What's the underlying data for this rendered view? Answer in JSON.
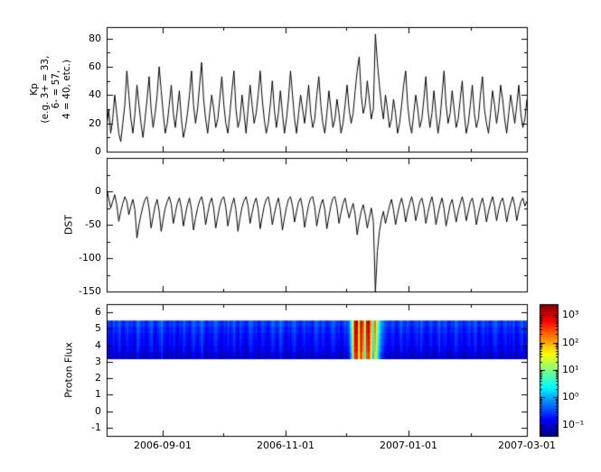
{
  "figure": {
    "background_color": "#ffffff",
    "frame_color": "#000000"
  },
  "chart_data": {
    "x_axis": {
      "start_date": "2006-08-04",
      "end_date": "2007-03-01",
      "total_days": 209,
      "tick_labels": [
        "2006-09-01",
        "2006-11-01",
        "2007-01-01",
        "2007-03-01"
      ],
      "tick_days": [
        28,
        89,
        150,
        209
      ],
      "minor_tick_days": [
        58,
        119,
        181
      ],
      "grid": "off",
      "legend": "none"
    },
    "panels": [
      {
        "type": "line",
        "name": "kp",
        "ylabel_lines": [
          "Kp",
          "(e.g. 3+ = 33,",
          "6- = 57,",
          "4 = 40, etc.)"
        ],
        "ylim": [
          0,
          88
        ],
        "yticks": [
          0,
          20,
          40,
          60,
          80
        ],
        "yticks_minor": [
          10,
          30,
          50,
          70
        ],
        "line_color": "#000000",
        "values": [
          17,
          30,
          13,
          23,
          40,
          27,
          13,
          7,
          20,
          33,
          57,
          40,
          23,
          13,
          27,
          47,
          33,
          20,
          10,
          23,
          37,
          53,
          30,
          17,
          27,
          40,
          60,
          43,
          27,
          13,
          20,
          33,
          47,
          27,
          17,
          30,
          43,
          23,
          10,
          17,
          27,
          40,
          57,
          33,
          20,
          30,
          47,
          63,
          37,
          23,
          13,
          27,
          40,
          30,
          17,
          23,
          37,
          53,
          33,
          20,
          13,
          27,
          43,
          57,
          30,
          17,
          23,
          40,
          27,
          13,
          30,
          47,
          33,
          20,
          27,
          40,
          57,
          37,
          23,
          13,
          20,
          33,
          50,
          30,
          17,
          27,
          43,
          27,
          13,
          23,
          37,
          57,
          40,
          23,
          13,
          27,
          40,
          30,
          20,
          33,
          47,
          27,
          17,
          23,
          40,
          53,
          33,
          20,
          13,
          27,
          43,
          30,
          17,
          23,
          37,
          27,
          13,
          20,
          33,
          47,
          30,
          20,
          27,
          43,
          57,
          67,
          40,
          27,
          33,
          50,
          37,
          23,
          30,
          83,
          63,
          47,
          33,
          23,
          40,
          30,
          17,
          23,
          37,
          27,
          13,
          20,
          33,
          47,
          57,
          33,
          20,
          13,
          27,
          40,
          30,
          17,
          23,
          37,
          53,
          30,
          17,
          27,
          43,
          27,
          13,
          23,
          40,
          57,
          33,
          20,
          27,
          43,
          30,
          17,
          23,
          37,
          50,
          27,
          13,
          20,
          33,
          47,
          27,
          17,
          23,
          40,
          53,
          30,
          20,
          13,
          27,
          43,
          33,
          20,
          30,
          47,
          37,
          23,
          13,
          27,
          40,
          30,
          20,
          33,
          47,
          27,
          17,
          23,
          37
        ]
      },
      {
        "type": "line",
        "name": "dst",
        "ylabel": "DST",
        "ylim": [
          -150,
          50
        ],
        "yticks": [
          0,
          -50,
          -100,
          -150
        ],
        "yticks_minor": [
          25,
          -25,
          -75,
          -125
        ],
        "line_color": "#000000",
        "values": [
          5,
          -10,
          -25,
          -15,
          -5,
          -20,
          -45,
          -30,
          -18,
          -8,
          -15,
          -35,
          -22,
          -12,
          -28,
          -70,
          -50,
          -35,
          -22,
          -12,
          -8,
          -25,
          -55,
          -38,
          -22,
          -12,
          -30,
          -60,
          -42,
          -25,
          -15,
          -8,
          -20,
          -48,
          -32,
          -18,
          -10,
          -25,
          -52,
          -35,
          -20,
          -10,
          -28,
          -58,
          -40,
          -25,
          -14,
          -8,
          -22,
          -50,
          -33,
          -18,
          -10,
          -26,
          -55,
          -38,
          -22,
          -12,
          -8,
          -24,
          -52,
          -35,
          -20,
          -10,
          -28,
          -60,
          -40,
          -24,
          -14,
          -8,
          -22,
          -48,
          -32,
          -18,
          -10,
          -26,
          -56,
          -38,
          -22,
          -12,
          -8,
          -24,
          -50,
          -34,
          -20,
          -10,
          -28,
          -58,
          -40,
          -24,
          -12,
          -8,
          -22,
          -46,
          -30,
          -16,
          -10,
          -26,
          -54,
          -36,
          -20,
          -10,
          -8,
          -24,
          -52,
          -34,
          -20,
          -12,
          -28,
          -56,
          -38,
          -22,
          -10,
          -8,
          -24,
          -48,
          -32,
          -18,
          -10,
          -26,
          -40,
          -28,
          -18,
          -35,
          -65,
          -45,
          -30,
          -20,
          -35,
          -55,
          -40,
          -25,
          -45,
          -150,
          -90,
          -60,
          -42,
          -30,
          -48,
          -35,
          -22,
          -12,
          -28,
          -50,
          -34,
          -20,
          -10,
          -24,
          -46,
          -30,
          -18,
          -8,
          -22,
          -44,
          -30,
          -16,
          -10,
          -24,
          -48,
          -32,
          -18,
          -8,
          -24,
          -50,
          -34,
          -20,
          -10,
          -26,
          -52,
          -36,
          -20,
          -12,
          -28,
          -46,
          -30,
          -18,
          -8,
          -22,
          -44,
          -30,
          -16,
          -10,
          -26,
          -50,
          -34,
          -20,
          -10,
          -24,
          -46,
          -30,
          -18,
          -8,
          -22,
          -44,
          -28,
          -16,
          -10,
          -24,
          -46,
          -30,
          -18,
          -8,
          -22,
          -44,
          -28,
          -16,
          -10,
          -22,
          -15
        ]
      },
      {
        "type": "heatmap",
        "name": "proton_flux",
        "ylabel": "Proton Flux",
        "ylim": [
          -1.5,
          6.5
        ],
        "yticks": [
          -1,
          0,
          1,
          2,
          3,
          4,
          5,
          6
        ],
        "band_y": [
          3.2,
          5.5
        ],
        "rows": 6,
        "row_log10_offsets": [
          0.2,
          0.1,
          0,
          -0.05,
          -0.15,
          -0.3
        ],
        "color_range_log10": [
          -1.4,
          3.4
        ],
        "colormap": "jet",
        "log10_values": [
          -0.8,
          -0.7,
          -0.9,
          -0.6,
          -0.8,
          -0.7,
          -0.5,
          -0.8,
          -0.9,
          -0.7,
          -0.6,
          -0.8,
          -0.7,
          -0.9,
          -0.8,
          -0.4,
          -0.6,
          -0.8,
          -0.7,
          -0.9,
          -0.8,
          -0.6,
          -0.5,
          -0.8,
          -0.9,
          -0.7,
          -0.6,
          -0.4,
          -0.7,
          -0.8,
          -0.9,
          -0.7,
          -0.8,
          -0.6,
          -0.8,
          -0.9,
          -0.7,
          -0.8,
          -0.5,
          -0.7,
          -0.8,
          -0.9,
          -0.6,
          -0.5,
          -0.7,
          -0.8,
          -0.6,
          -0.4,
          -0.7,
          -0.9,
          -0.8,
          -0.7,
          -0.8,
          -0.6,
          -0.5,
          -0.7,
          -0.8,
          -0.9,
          -0.7,
          -0.8,
          -0.6,
          -0.8,
          -0.7,
          -0.5,
          -0.8,
          -0.9,
          -0.6,
          -0.7,
          -0.8,
          -0.9,
          -0.7,
          -0.5,
          -0.6,
          -0.8,
          -0.7,
          -0.9,
          -0.8,
          -0.6,
          -0.7,
          -0.8,
          -0.9,
          -0.7,
          -0.5,
          -0.6,
          -0.8,
          -0.7,
          -0.4,
          -0.6,
          -0.8,
          -0.9,
          -0.7,
          -0.8,
          -0.6,
          -0.5,
          -0.7,
          -0.8,
          -0.9,
          -0.7,
          -0.6,
          -0.8,
          -0.7,
          -0.8,
          -0.9,
          -0.6,
          -0.5,
          -0.7,
          -0.8,
          -0.6,
          -0.7,
          -0.9,
          -0.8,
          -0.7,
          -0.5,
          -0.6,
          -0.8,
          -0.7,
          -0.9,
          -0.8,
          -0.6,
          -0.7,
          -0.5,
          0.2,
          1.4,
          2.9,
          3.0,
          1.6,
          2.9,
          2.3,
          0.9,
          2.7,
          2.9,
          1.8,
          0.5,
          2.1,
          1.2,
          0.3,
          -0.2,
          -0.4,
          -0.6,
          -0.7,
          -0.8,
          -0.7,
          -0.6,
          -0.8,
          -0.9,
          -0.7,
          -0.5,
          -0.7,
          -0.8,
          -0.6,
          -0.7,
          -0.9,
          -0.8,
          -0.7,
          -0.6,
          -0.8,
          -0.5,
          -0.7,
          -0.8,
          -0.9,
          -0.7,
          -0.6,
          -0.8,
          -0.9,
          -0.7,
          -0.5,
          -0.8,
          -0.7,
          -0.6,
          -0.8,
          -0.9,
          -0.7,
          -0.8,
          -0.5,
          -0.6,
          -0.8,
          -0.7,
          -0.9,
          -0.8,
          -0.7,
          -0.6,
          -0.8,
          -0.7,
          -0.5,
          -0.8,
          -0.9,
          -0.7,
          -0.6,
          -0.8,
          -0.7,
          -0.9,
          -0.8,
          -0.6,
          -0.5,
          -0.7,
          -0.8,
          -0.9,
          -0.7,
          -0.6,
          -0.8,
          -0.7,
          -0.8,
          -0.6,
          -0.9,
          -0.8,
          -0.7,
          -0.5,
          -0.8,
          -0.7
        ]
      }
    ],
    "colorbar": {
      "scale": "log10",
      "range_log10": [
        -1.4,
        3.4
      ],
      "ticks_log10": [
        3,
        2,
        1,
        0,
        -1
      ],
      "tick_labels": [
        "10³",
        "10²",
        "10¹",
        "10⁰",
        "10⁻¹"
      ],
      "colormap_stops": [
        {
          "t": 0.0,
          "c": "#000083"
        },
        {
          "t": 0.125,
          "c": "#0000ff"
        },
        {
          "t": 0.375,
          "c": "#00ffff"
        },
        {
          "t": 0.625,
          "c": "#ffff00"
        },
        {
          "t": 0.875,
          "c": "#ff0000"
        },
        {
          "t": 1.0,
          "c": "#800000"
        }
      ]
    }
  }
}
